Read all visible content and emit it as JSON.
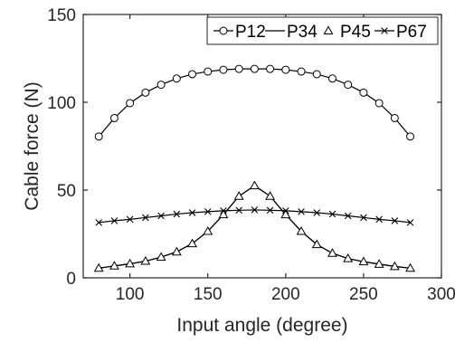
{
  "chart_data": {
    "type": "line",
    "title": "",
    "xlabel": "Input angle (degree)",
    "ylabel": "Cable force (N)",
    "xlim": [
      70,
      300
    ],
    "ylim": [
      0,
      150
    ],
    "xticks": [
      100,
      150,
      200,
      250,
      300
    ],
    "yticks": [
      0,
      50,
      100,
      150
    ],
    "grid": false,
    "legend_position": "top",
    "x": [
      80,
      90,
      100,
      110,
      120,
      130,
      140,
      150,
      160,
      170,
      180,
      190,
      200,
      210,
      220,
      230,
      240,
      250,
      260,
      270,
      280
    ],
    "series": [
      {
        "name": "P12",
        "marker": "circle",
        "values": [
          80.5,
          91.0,
          99.5,
          105.5,
          110.0,
          113.5,
          116.0,
          117.5,
          118.5,
          119.0,
          119.0,
          119.0,
          118.5,
          117.5,
          116.0,
          113.5,
          110.0,
          105.5,
          99.5,
          91.0,
          80.5
        ]
      },
      {
        "name": "P34",
        "marker": "none",
        "values": [
          5.5,
          6.8,
          8.0,
          9.5,
          11.8,
          14.8,
          19.5,
          26.5,
          36.0,
          46.5,
          52.5,
          46.5,
          36.0,
          26.5,
          19.0,
          14.0,
          11.0,
          9.2,
          7.8,
          6.5,
          5.5
        ]
      },
      {
        "name": "P45",
        "marker": "triangle",
        "values": [
          5.5,
          6.8,
          8.0,
          9.5,
          11.8,
          14.8,
          19.5,
          26.5,
          36.0,
          46.5,
          52.5,
          46.5,
          36.0,
          26.5,
          19.0,
          14.0,
          11.0,
          9.2,
          7.8,
          6.5,
          5.5
        ]
      },
      {
        "name": "P67",
        "marker": "x",
        "values": [
          31.5,
          32.5,
          33.3,
          34.3,
          35.3,
          36.3,
          37.1,
          37.7,
          38.2,
          38.5,
          38.7,
          38.5,
          38.2,
          37.7,
          37.1,
          36.3,
          35.3,
          34.3,
          33.3,
          32.5,
          31.5
        ]
      }
    ]
  }
}
